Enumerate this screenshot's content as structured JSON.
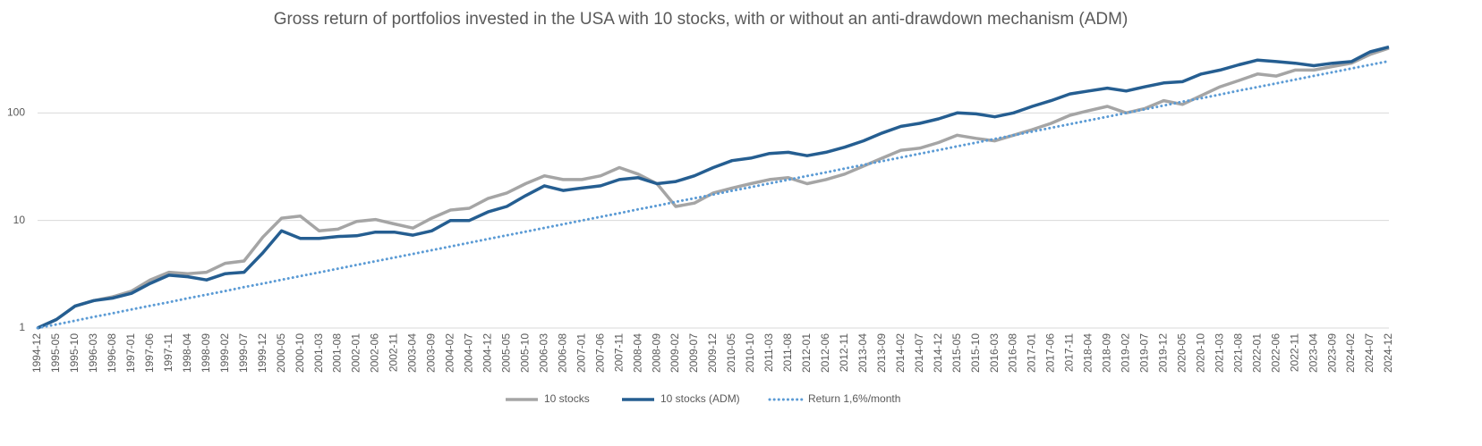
{
  "chart_data": {
    "type": "line",
    "title": "Gross return of portfolios invested in the USA with 10 stocks, with or without an anti-drawdown mechanism (ADM)",
    "categories": [
      "1994-12",
      "1995-05",
      "1995-10",
      "1996-03",
      "1996-08",
      "1997-01",
      "1997-06",
      "1997-11",
      "1998-04",
      "1998-09",
      "1999-02",
      "1999-07",
      "1999-12",
      "2000-05",
      "2000-10",
      "2001-03",
      "2001-08",
      "2002-01",
      "2002-06",
      "2002-11",
      "2003-04",
      "2003-09",
      "2004-02",
      "2004-07",
      "2004-12",
      "2005-05",
      "2005-10",
      "2006-03",
      "2006-08",
      "2007-01",
      "2007-06",
      "2007-11",
      "2008-04",
      "2008-09",
      "2009-02",
      "2009-07",
      "2009-12",
      "2010-05",
      "2010-10",
      "2011-03",
      "2011-08",
      "2012-01",
      "2012-06",
      "2012-11",
      "2013-04",
      "2013-09",
      "2014-02",
      "2014-07",
      "2014-12",
      "2015-05",
      "2015-10",
      "2016-03",
      "2016-08",
      "2017-01",
      "2017-06",
      "2017-11",
      "2018-04",
      "2018-09",
      "2019-02",
      "2019-07",
      "2019-12",
      "2020-05",
      "2020-10",
      "2021-03",
      "2021-08",
      "2022-01",
      "2022-06",
      "2022-11",
      "2023-04",
      "2023-09",
      "2024-02",
      "2024-07",
      "2024-12"
    ],
    "series": [
      {
        "name": "10 stocks",
        "color": "#a5a5a5",
        "dash": "solid",
        "values": [
          1,
          1.2,
          1.6,
          1.8,
          1.95,
          2.2,
          2.8,
          3.3,
          3.2,
          3.3,
          4.0,
          4.2,
          7.0,
          10.5,
          11,
          8,
          8.3,
          9.8,
          10.2,
          9.3,
          8.5,
          10.5,
          12.5,
          13,
          16,
          18,
          22,
          26,
          24,
          24,
          26,
          31,
          27,
          22,
          13.5,
          14.5,
          18,
          20,
          22,
          24,
          25,
          22,
          24,
          27,
          32,
          38,
          45,
          47,
          53,
          62,
          58,
          55,
          62,
          70,
          80,
          95,
          105,
          115,
          100,
          110,
          130,
          120,
          145,
          175,
          200,
          230,
          220,
          250,
          250,
          270,
          290,
          350,
          400
        ]
      },
      {
        "name": "10 stocks (ADM)",
        "color": "#255e91",
        "dash": "solid",
        "values": [
          1,
          1.2,
          1.6,
          1.8,
          1.9,
          2.1,
          2.6,
          3.1,
          3.0,
          2.8,
          3.2,
          3.3,
          5.0,
          8.0,
          6.8,
          6.8,
          7.1,
          7.2,
          7.8,
          7.8,
          7.3,
          8.0,
          10,
          10,
          12,
          13.5,
          17,
          21,
          19,
          20,
          21,
          24,
          25,
          22,
          23,
          26,
          31,
          36,
          38,
          42,
          43,
          40,
          43,
          48,
          55,
          65,
          75,
          80,
          88,
          100,
          98,
          92,
          100,
          115,
          130,
          150,
          160,
          170,
          160,
          175,
          190,
          195,
          230,
          250,
          280,
          310,
          300,
          290,
          275,
          290,
          300,
          370,
          410
        ]
      },
      {
        "name": "Return 1,6%/month",
        "color": "#5b9bd5",
        "dash": "dotted",
        "values": [
          1,
          1.08,
          1.17,
          1.27,
          1.37,
          1.49,
          1.61,
          1.74,
          1.89,
          2.04,
          2.21,
          2.4,
          2.59,
          2.81,
          3.04,
          3.29,
          3.56,
          3.86,
          4.18,
          4.52,
          4.89,
          5.29,
          5.73,
          6.21,
          6.72,
          7.27,
          7.87,
          8.52,
          9.23,
          9.99,
          10.8,
          11.7,
          12.7,
          13.7,
          14.9,
          16.1,
          17.4,
          18.9,
          20.4,
          22.1,
          23.9,
          25.9,
          28,
          30.4,
          32.9,
          35.6,
          38.5,
          41.7,
          45.1,
          48.9,
          52.9,
          57.3,
          62,
          67.1,
          72.7,
          78.7,
          85.2,
          92.2,
          99.8,
          108,
          117,
          127,
          137,
          148,
          161,
          174,
          188,
          204,
          221,
          239,
          259,
          280,
          303
        ]
      }
    ],
    "ylim": [
      1,
      1000
    ],
    "yticks": [
      1,
      10,
      100
    ],
    "log_scale": true,
    "grid": true,
    "legend": "bottom"
  }
}
